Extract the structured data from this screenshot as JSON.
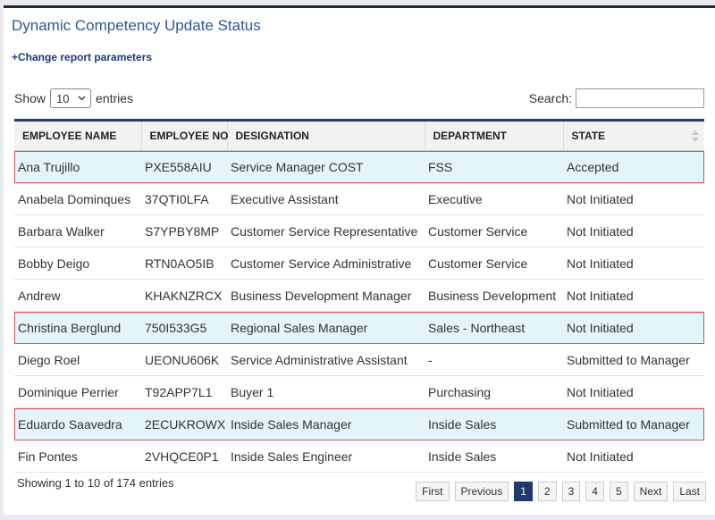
{
  "header": {
    "title": "Dynamic Competency Update Status",
    "link": "+Change report parameters"
  },
  "controls": {
    "show_label": "Show",
    "page_size": "10",
    "entries_label": "entries",
    "search_label": "Search:"
  },
  "table": {
    "columns": [
      "EMPLOYEE NAME",
      "EMPLOYEE NO",
      "DESIGNATION",
      "DEPARTMENT",
      "STATE"
    ],
    "rows": [
      [
        "Ana Trujillo",
        "PXE558AIU",
        "Service Manager COST",
        "FSS",
        "Accepted"
      ],
      [
        "Anabela Dominques",
        "37QTI0LFA",
        "Executive Assistant",
        "Executive",
        "Not Initiated"
      ],
      [
        "Barbara Walker",
        "S7YPBY8MP",
        "Customer Service Representative",
        "Customer Service",
        "Not Initiated"
      ],
      [
        "Bobby Deigo",
        "RTN0AO5IB",
        "Customer Service Administrative",
        "Customer Service",
        "Not Initiated"
      ],
      [
        "Andrew",
        "KHAKNZRCX",
        "Business Development Manager",
        "Business Development",
        "Not Initiated"
      ],
      [
        "Christina Berglund",
        "750I533G5",
        "Regional Sales Manager",
        "Sales - Northeast",
        "Not Initiated"
      ],
      [
        "Diego Roel",
        "UEONU606K",
        "Service Administrative Assistant",
        "-",
        "Submitted to Manager"
      ],
      [
        "Dominique Perrier",
        "T92APP7L1",
        "Buyer 1",
        "Purchasing",
        "Not Initiated"
      ],
      [
        "Eduardo Saavedra",
        "2ECUKROWX",
        "Inside Sales Manager",
        "Inside Sales",
        "Submitted to Manager"
      ],
      [
        "Fin Pontes",
        "2VHQCE0P1",
        "Inside Sales Engineer",
        "Inside Sales",
        "Not Initiated"
      ]
    ]
  },
  "footer": {
    "info": "Showing 1 to 10 of 174 entries",
    "pagination": [
      "First",
      "Previous",
      "1",
      "2",
      "3",
      "4",
      "5",
      "Next",
      "Last"
    ]
  }
}
